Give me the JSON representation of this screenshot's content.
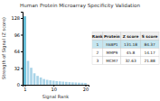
{
  "chart_data": {
    "type": "bar",
    "title": "Human Protein Microarray Specificity Validation",
    "xlabel": "Signal Rank",
    "ylabel": "Strength of Signal (Z score)",
    "x": [
      1,
      2,
      3,
      4,
      5,
      6,
      7,
      8,
      9,
      10,
      11,
      12,
      13,
      14,
      15,
      16,
      17,
      18,
      19,
      20
    ],
    "values": [
      131.18,
      45.8,
      32.63,
      22,
      17,
      14,
      11,
      9.5,
      8.5,
      7.8,
      7.0,
      6.5,
      6.0,
      5.5,
      5.0,
      4.6,
      4.3,
      4.0,
      3.8,
      3.5
    ],
    "colors": [
      "#5bb8d4",
      "#aad4e8",
      "#aad4e8",
      "#aad4e8",
      "#aad4e8",
      "#aad4e8",
      "#aad4e8",
      "#aad4e8",
      "#aad4e8",
      "#aad4e8",
      "#aad4e8",
      "#aad4e8",
      "#aad4e8",
      "#aad4e8",
      "#aad4e8",
      "#aad4e8",
      "#aad4e8",
      "#aad4e8",
      "#aad4e8",
      "#aad4e8"
    ],
    "xlim": [
      0.3,
      21
    ],
    "xticks": [
      1,
      10,
      20
    ],
    "ylim": [
      0,
      140
    ],
    "yticks": [
      0,
      32,
      64,
      96,
      128
    ],
    "grid": false,
    "table": {
      "headers": [
        "Rank",
        "Protein",
        "Z score",
        "S score"
      ],
      "rows": [
        [
          "1",
          "FABP1",
          "131.18",
          "84.37"
        ],
        [
          "2",
          "MMP9",
          "45.8",
          "14.17"
        ],
        [
          "3",
          "MCM7",
          "32.63",
          "21.88"
        ]
      ]
    }
  }
}
